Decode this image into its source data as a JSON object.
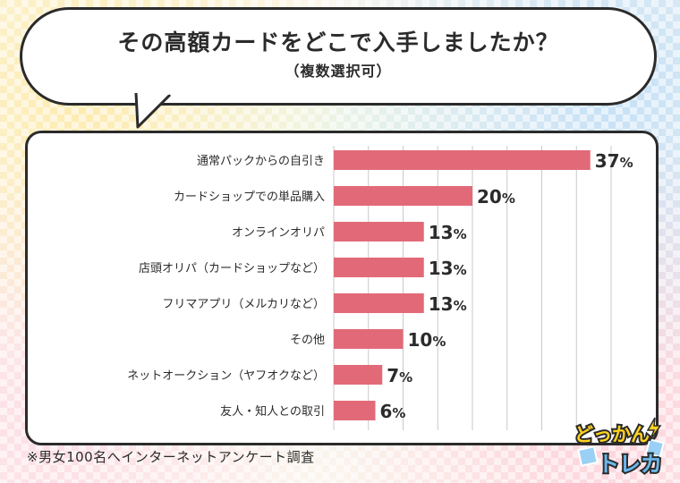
{
  "chart_data": {
    "type": "bar",
    "orientation": "horizontal",
    "title": "その高額カードをどこで入手しましたか？",
    "subtitle": "（複数選択可）",
    "unit": "%",
    "categories": [
      "通常パックからの自引き",
      "カードショップでの単品購入",
      "オンラインオリパ",
      "店頭オリパ（カードショップなど）",
      "フリマアプリ（メルカリなど）",
      "その他",
      "ネットオークション（ヤフオクなど）",
      "友人・知人との取引"
    ],
    "values": [
      37,
      20,
      13,
      13,
      13,
      10,
      7,
      6
    ],
    "xlim": [
      0,
      40
    ],
    "grid": true,
    "bar_color": "#e26a78"
  },
  "footnote": "※男女100名へインターネットアンケート調査",
  "logo": {
    "line1": "どっかん",
    "line2": "トレカ"
  }
}
